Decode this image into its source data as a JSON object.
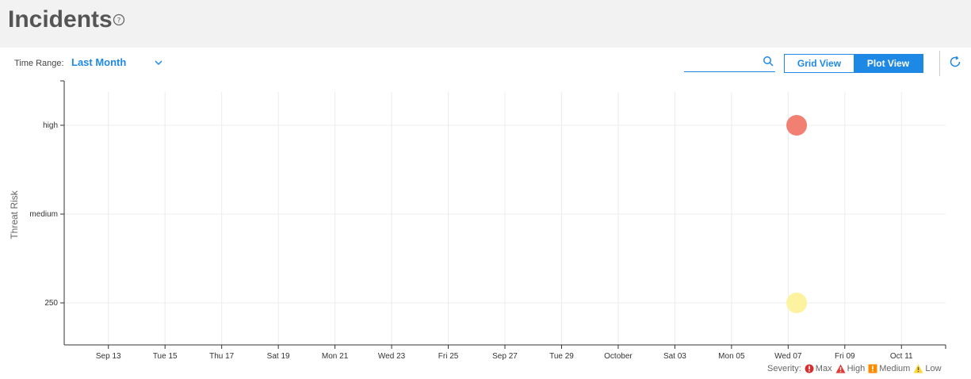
{
  "header": {
    "title": "Incidents",
    "help_icon": "question-circle-icon"
  },
  "toolbar": {
    "time_range_label": "Time Range:",
    "time_range_value": "Last Month",
    "search_placeholder": "",
    "grid_view_label": "Grid View",
    "plot_view_label": "Plot View",
    "active_view": "Plot View",
    "accent_color": "#1e88e5"
  },
  "legend": {
    "label": "Severity:",
    "items": [
      {
        "name": "Max",
        "icon": "exclamation-circle-icon",
        "color": "#d32f2f"
      },
      {
        "name": "High",
        "icon": "warning-triangle-icon",
        "color": "#e53935"
      },
      {
        "name": "Medium",
        "icon": "exclamation-square-icon",
        "color": "#fb8c00"
      },
      {
        "name": "Low",
        "icon": "warning-triangle-icon",
        "color": "#fdd835"
      }
    ]
  },
  "chart_data": {
    "type": "scatter",
    "title": "",
    "xlabel": "",
    "ylabel": "Threat Risk",
    "x_ticks": [
      "Sep 13",
      "Tue 15",
      "Thu 17",
      "Sat 19",
      "Mon 21",
      "Wed 23",
      "Fri 25",
      "Sep 27",
      "Tue 29",
      "October",
      "Sat 03",
      "Mon 05",
      "Wed 07",
      "Fri 09",
      "Oct 11"
    ],
    "xlim": [
      "2015-09-12",
      "2015-10-12"
    ],
    "y_categories": [
      "250",
      "medium",
      "high"
    ],
    "grid": true,
    "points": [
      {
        "x": "2015-10-07",
        "y": "high",
        "color": "#f28072"
      },
      {
        "x": "2015-10-07",
        "y": "250",
        "color": "#fdf2a0"
      }
    ]
  }
}
